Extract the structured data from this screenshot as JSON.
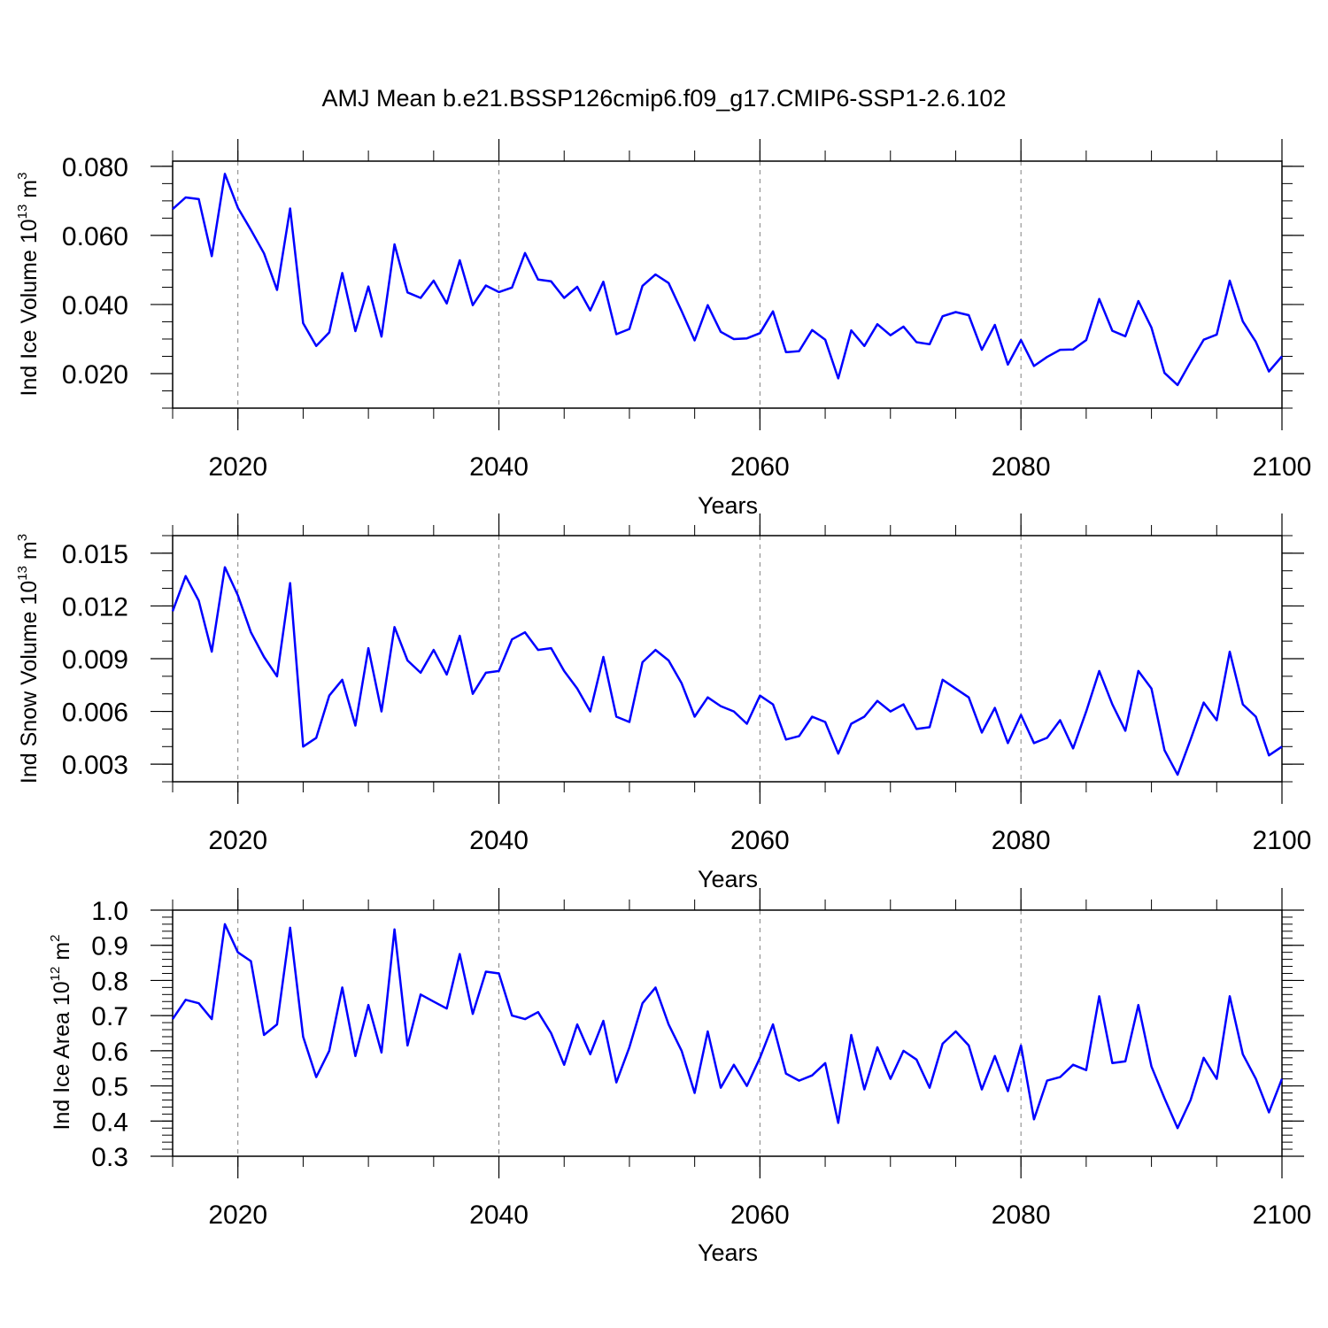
{
  "title": "AMJ Mean b.e21.BSSP126cmip6.f09_g17.CMIP6-SSP1-2.6.102",
  "series_color": "#0000ff",
  "chart_data": [
    {
      "type": "line",
      "ylabel": {
        "text": "Ind Ice Volume 10",
        "exp": "13",
        "unit": " m",
        "unit_exp": "3"
      },
      "xlabel": "Years",
      "xlim": [
        2015,
        2100
      ],
      "ylim": [
        0.01,
        0.0815
      ],
      "yticks": [
        0.02,
        0.04,
        0.06,
        0.08
      ],
      "ytick_labels": [
        "0.020",
        "0.040",
        "0.060",
        "0.080"
      ],
      "yminor_step": 0.005,
      "xticks": [
        2020,
        2040,
        2060,
        2080,
        2100
      ],
      "xtick_labels": [
        "2020",
        "2040",
        "2060",
        "2080",
        "2100"
      ],
      "xminor_step": 5,
      "x_start": 2015,
      "values": [
        0.0676,
        0.071,
        0.0705,
        0.054,
        0.0778,
        0.068,
        0.0616,
        0.0548,
        0.0442,
        0.0678,
        0.0346,
        0.028,
        0.0319,
        0.0491,
        0.0323,
        0.0452,
        0.0307,
        0.0574,
        0.0435,
        0.0419,
        0.0469,
        0.0403,
        0.0528,
        0.0398,
        0.0455,
        0.0436,
        0.0449,
        0.0549,
        0.0472,
        0.0467,
        0.0419,
        0.0451,
        0.0383,
        0.0466,
        0.0314,
        0.0329,
        0.0454,
        0.0487,
        0.0462,
        0.0381,
        0.0296,
        0.0398,
        0.0321,
        0.03,
        0.0302,
        0.0317,
        0.038,
        0.0262,
        0.0265,
        0.0326,
        0.0298,
        0.0186,
        0.0325,
        0.028,
        0.0343,
        0.0311,
        0.0336,
        0.0291,
        0.0285,
        0.0366,
        0.0378,
        0.0369,
        0.0269,
        0.0341,
        0.0226,
        0.0297,
        0.0222,
        0.0248,
        0.0269,
        0.027,
        0.0297,
        0.0416,
        0.0324,
        0.0308,
        0.041,
        0.0333,
        0.0202,
        0.0167,
        0.0234,
        0.0298,
        0.0313,
        0.0469,
        0.0351,
        0.0292,
        0.0206,
        0.025
      ]
    },
    {
      "type": "line",
      "ylabel": {
        "text": "Ind Snow Volume 10",
        "exp": "13",
        "unit": " m",
        "unit_exp": "3"
      },
      "xlabel": "Years",
      "xlim": [
        2015,
        2100
      ],
      "ylim": [
        0.002,
        0.016
      ],
      "yticks": [
        0.003,
        0.006,
        0.009,
        0.012,
        0.015
      ],
      "ytick_labels": [
        "0.003",
        "0.006",
        "0.009",
        "0.012",
        "0.015"
      ],
      "yminor_step": 0.001,
      "xticks": [
        2020,
        2040,
        2060,
        2080,
        2100
      ],
      "xtick_labels": [
        "2020",
        "2040",
        "2060",
        "2080",
        "2100"
      ],
      "xminor_step": 5,
      "x_start": 2015,
      "values": [
        0.0117,
        0.0137,
        0.0123,
        0.0094,
        0.0142,
        0.0126,
        0.0105,
        0.0091,
        0.008,
        0.0133,
        0.004,
        0.0045,
        0.0069,
        0.0078,
        0.0052,
        0.0096,
        0.006,
        0.0108,
        0.0089,
        0.0082,
        0.0095,
        0.0081,
        0.0103,
        0.007,
        0.0082,
        0.0083,
        0.0101,
        0.0105,
        0.0095,
        0.0096,
        0.0083,
        0.0073,
        0.006,
        0.0091,
        0.0057,
        0.0054,
        0.0088,
        0.0095,
        0.0089,
        0.0076,
        0.0057,
        0.0068,
        0.0063,
        0.006,
        0.0053,
        0.0069,
        0.0064,
        0.0044,
        0.0046,
        0.0057,
        0.0054,
        0.0036,
        0.0053,
        0.0057,
        0.0066,
        0.006,
        0.0064,
        0.005,
        0.0051,
        0.0078,
        0.0073,
        0.0068,
        0.0048,
        0.0062,
        0.0042,
        0.0058,
        0.0042,
        0.0045,
        0.0055,
        0.0039,
        0.006,
        0.0083,
        0.0064,
        0.0049,
        0.0083,
        0.0073,
        0.0038,
        0.0024,
        0.0044,
        0.0065,
        0.0055,
        0.0094,
        0.0064,
        0.0057,
        0.0035,
        0.004
      ]
    },
    {
      "type": "line",
      "ylabel": {
        "text": "Ind Ice Area 10",
        "exp": "12",
        "unit": " m",
        "unit_exp": "2"
      },
      "xlabel": "Years",
      "xlim": [
        2015,
        2100
      ],
      "ylim": [
        0.3,
        1.0
      ],
      "yticks": [
        0.3,
        0.4,
        0.5,
        0.6,
        0.7,
        0.8,
        0.9,
        1.0
      ],
      "ytick_labels": [
        "0.3",
        "0.4",
        "0.5",
        "0.6",
        "0.7",
        "0.8",
        "0.9",
        "1.0"
      ],
      "yminor_step": 0.02,
      "xticks": [
        2020,
        2040,
        2060,
        2080,
        2100
      ],
      "xtick_labels": [
        "2020",
        "2040",
        "2060",
        "2080",
        "2100"
      ],
      "xminor_step": 5,
      "x_start": 2015,
      "values": [
        0.69,
        0.745,
        0.735,
        0.69,
        0.96,
        0.88,
        0.855,
        0.645,
        0.675,
        0.95,
        0.64,
        0.525,
        0.6,
        0.78,
        0.585,
        0.73,
        0.595,
        0.945,
        0.615,
        0.76,
        0.74,
        0.72,
        0.875,
        0.705,
        0.825,
        0.82,
        0.7,
        0.69,
        0.71,
        0.65,
        0.56,
        0.675,
        0.59,
        0.685,
        0.51,
        0.61,
        0.735,
        0.78,
        0.675,
        0.6,
        0.48,
        0.655,
        0.495,
        0.56,
        0.5,
        0.58,
        0.675,
        0.535,
        0.515,
        0.53,
        0.565,
        0.395,
        0.645,
        0.49,
        0.61,
        0.52,
        0.6,
        0.575,
        0.495,
        0.62,
        0.655,
        0.615,
        0.49,
        0.585,
        0.485,
        0.615,
        0.405,
        0.515,
        0.525,
        0.56,
        0.545,
        0.755,
        0.565,
        0.57,
        0.73,
        0.555,
        0.465,
        0.38,
        0.46,
        0.58,
        0.52,
        0.755,
        0.59,
        0.52,
        0.425,
        0.52
      ]
    }
  ]
}
